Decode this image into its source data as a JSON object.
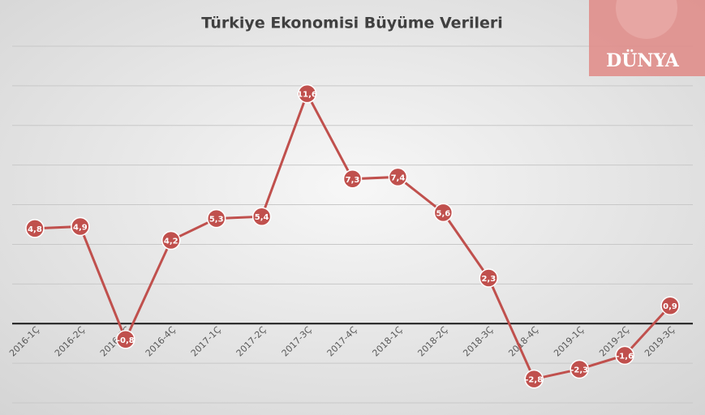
{
  "chart_data": {
    "type": "line",
    "title": "Türkiye Ekonomisi Büyüme Verileri",
    "logo": "DÜNYA",
    "categories": [
      "2016-1Ç",
      "2016-2Ç",
      "2016-3Ç",
      "2016-4Ç",
      "2017-1Ç",
      "2017-2Ç",
      "2017-3Ç",
      "2017-4Ç",
      "2018-1Ç",
      "2018-2Ç",
      "2018-3Ç",
      "2018-4Ç",
      "2019-1Ç",
      "2019-2Ç",
      "2019-3Ç"
    ],
    "values": [
      4.8,
      4.9,
      -0.8,
      4.2,
      5.3,
      5.4,
      11.6,
      7.3,
      7.4,
      5.6,
      2.3,
      -2.8,
      -2.3,
      -1.6,
      0.9
    ],
    "value_labels": [
      "4,8",
      "4,9",
      "-0,8",
      "4,2",
      "5,3",
      "5,4",
      "11,6",
      "7,3",
      "7,4",
      "5,6",
      "2,3",
      "-2,8",
      "-2,3",
      "-1,6",
      "0,9"
    ],
    "color": "#c0504d",
    "ylim": [
      -4,
      14
    ],
    "yticks": [
      -4,
      -2,
      0,
      2,
      4,
      6,
      8,
      10,
      12,
      14
    ],
    "grid": true
  }
}
